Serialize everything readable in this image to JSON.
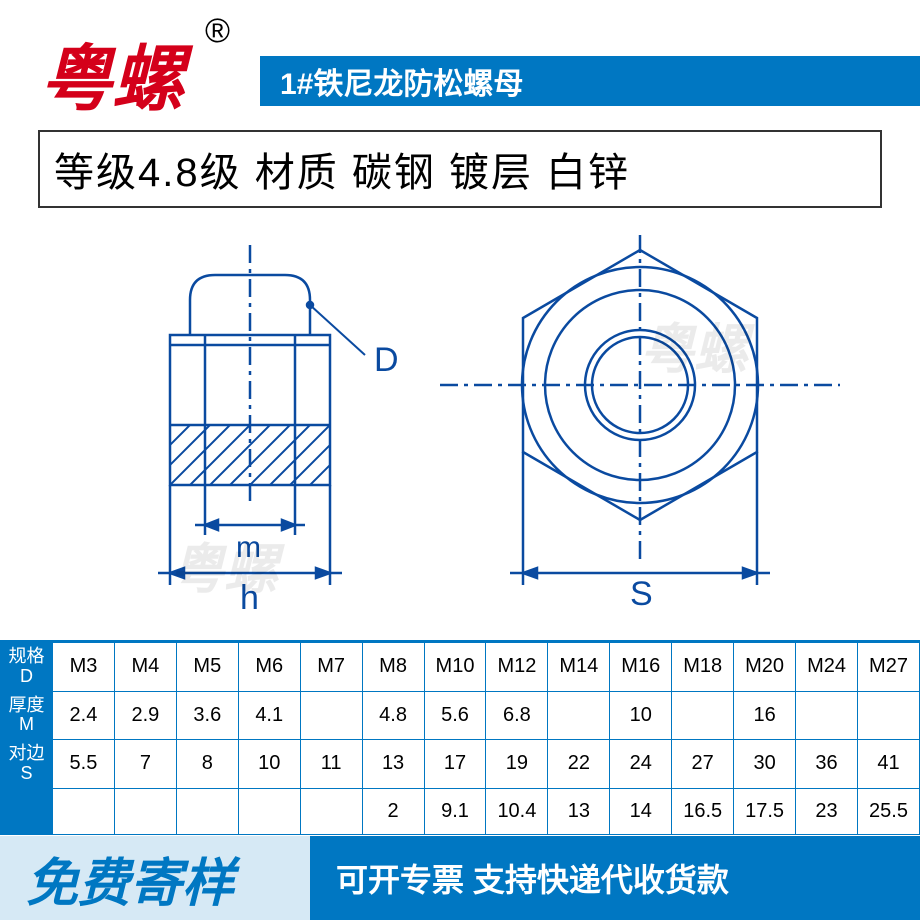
{
  "brand": "粤螺",
  "registered_mark": "®",
  "title": "1#铁尼龙防松螺母",
  "spec_line": "等级4.8级 材质 碳钢 镀层 白锌",
  "diagram": {
    "label_D": "D",
    "label_m": "m",
    "label_h": "h",
    "label_S": "S",
    "stroke": "#0a4aa0",
    "watermark_text": "粤螺"
  },
  "table": {
    "header_D": "规格D",
    "header_M": "厚度M",
    "header_S": "对边S",
    "sizes": [
      "M3",
      "M4",
      "M5",
      "M6",
      "M7",
      "M8",
      "M10",
      "M12",
      "M14",
      "M16",
      "M18",
      "M20",
      "M24",
      "M27"
    ],
    "row_M": [
      "2.4",
      "2.9",
      "3.6",
      "4.1",
      "",
      "4.8",
      "5.6",
      "6.8",
      "",
      "10",
      "",
      "16",
      "",
      ""
    ],
    "row_S": [
      "5.5",
      "7",
      "8",
      "10",
      "11",
      "13",
      "17",
      "19",
      "22",
      "24",
      "27",
      "30",
      "36",
      "41"
    ],
    "row_4": [
      "",
      "",
      "",
      "",
      "",
      "2",
      "9.1",
      "10.4",
      "13",
      "14",
      "16.5",
      "17.5",
      "23",
      "25.5"
    ]
  },
  "footer_left": "免费寄样",
  "footer_right": "可开专票 支持快递代收货款",
  "colors": {
    "brand": "#d4001a",
    "primary": "#0077c2",
    "light": "#d6e9f5",
    "border": "#333333"
  }
}
